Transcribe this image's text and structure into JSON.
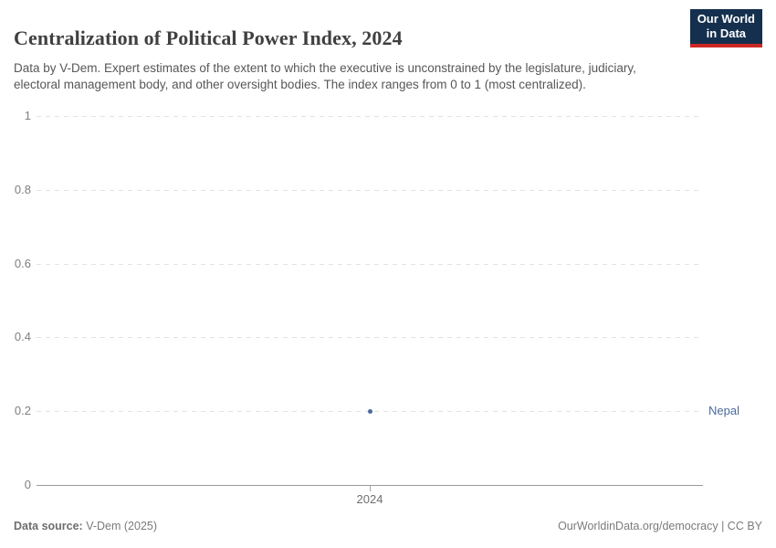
{
  "header": {
    "title": "Centralization of Political Power Index, 2024",
    "subtitle": "Data by V-Dem. Expert estimates of the extent to which the executive is unconstrained by the legislature, judiciary, electoral management body, and other oversight bodies. The index ranges from 0 to 1 (most centralized).",
    "logo": {
      "line1": "Our World",
      "line2": "in Data",
      "bg_color": "#15304e",
      "accent_color": "#cb2824"
    }
  },
  "chart_data": {
    "type": "scatter",
    "title": "Centralization of Political Power Index, 2024",
    "x": [
      2024
    ],
    "series": [
      {
        "name": "Nepal",
        "values": [
          0.2
        ],
        "color": "#4c6a9b"
      }
    ],
    "xlabel": "",
    "ylabel": "",
    "ylim": [
      0,
      1
    ],
    "y_ticks": [
      0,
      0.2,
      0.4,
      0.6,
      0.8,
      1
    ],
    "x_tick_labels": [
      "2024"
    ],
    "grid": "horizontal-dashed",
    "legend_position": "right-of-plot-entity-label",
    "entity_label": "Nepal"
  },
  "footer": {
    "source_label": "Data source:",
    "source_value": " V-Dem (2025)",
    "link": "OurWorldinData.org/democracy",
    "separator": " | ",
    "license": "CC BY"
  }
}
